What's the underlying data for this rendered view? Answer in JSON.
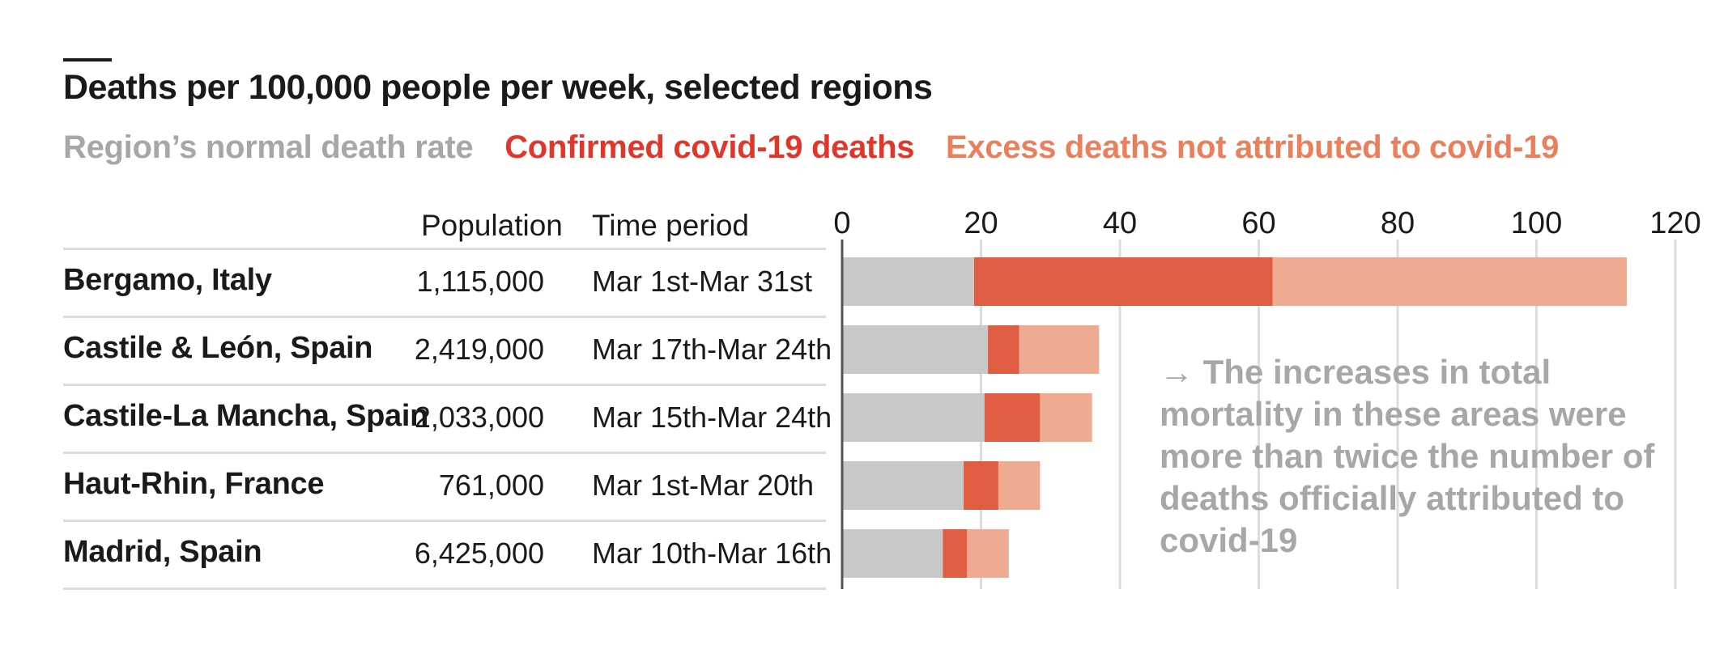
{
  "title": "Deaths per 100,000 people per week, selected regions",
  "legend": {
    "normal": "Region’s normal death rate",
    "confirmed": "Confirmed covid-19 deaths",
    "excess": "Excess deaths not attributed to covid-19"
  },
  "colors": {
    "normal": "#c8c8c8",
    "confirmed": "#e05c42",
    "excess": "#efab92",
    "grid": "#dcdcdc",
    "axis": "#555555"
  },
  "table": {
    "population_header": "Population",
    "time_header": "Time period",
    "rows": [
      {
        "region": "Bergamo, Italy",
        "population": "1,115,000",
        "period": "Mar 1st-Mar 31st"
      },
      {
        "region": "Castile & León, Spain",
        "population": "2,419,000",
        "period": "Mar 17th-Mar 24th"
      },
      {
        "region": "Castile-La Mancha, Spain",
        "population": "2,033,000",
        "period": "Mar 15th-Mar 24th"
      },
      {
        "region": "Haut-Rhin, France",
        "population": "761,000",
        "period": "Mar 1st-Mar 20th"
      },
      {
        "region": "Madrid, Spain",
        "population": "6,425,000",
        "period": "Mar 10th-Mar 16th"
      }
    ]
  },
  "annotation": "→ The increases in total mortality in these areas were more than twice the number of deaths officially attributed to covid-19",
  "chart_data": {
    "type": "bar",
    "orientation": "horizontal",
    "stacked": true,
    "title": "Deaths per 100,000 people per week, selected regions",
    "categories": [
      "Bergamo, Italy",
      "Castile & León, Spain",
      "Castile-La Mancha, Spain",
      "Haut-Rhin, France",
      "Madrid, Spain"
    ],
    "series": [
      {
        "name": "Region’s normal death rate",
        "values": [
          19,
          21,
          20.5,
          17.5,
          14.5
        ]
      },
      {
        "name": "Confirmed covid-19 deaths",
        "values": [
          43,
          4.5,
          8,
          5,
          3.5
        ]
      },
      {
        "name": "Excess deaths not attributed to covid-19",
        "values": [
          51,
          11.5,
          7.5,
          6,
          6
        ]
      }
    ],
    "xlim": [
      0,
      120
    ],
    "xticks": [
      0,
      20,
      40,
      60,
      80,
      100,
      120
    ],
    "grid": true
  }
}
